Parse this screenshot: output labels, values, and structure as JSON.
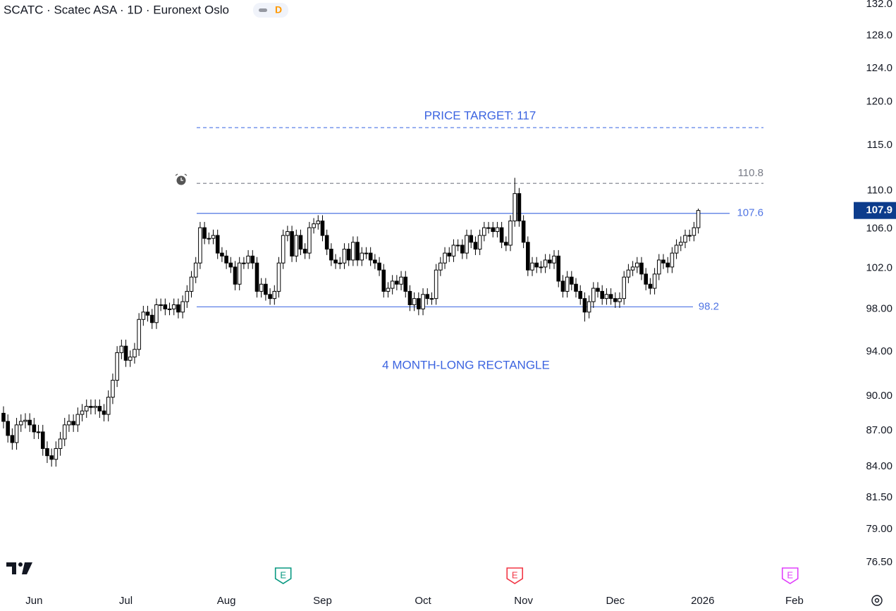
{
  "header": {
    "title": "SCATC · Scatec ASA · 1D · Euronext Oslo",
    "badge": "D"
  },
  "chart_data": {
    "type": "candlestick",
    "log_scale": true,
    "up_color": "#ffffff",
    "down_color": "#000000",
    "open": [
      88.5,
      87.8,
      86.6,
      86.0,
      87.5,
      87.8,
      87.9,
      87.5,
      86.9,
      86.9,
      85.5,
      84.9,
      84.6,
      85.5,
      86.3,
      87.5,
      87.8,
      87.5,
      88.4,
      88.7,
      89.1,
      89.0,
      89.1,
      88.7,
      88.4,
      89.9,
      91.4,
      93.9,
      94.5,
      93.2,
      93.5,
      94.2,
      97.0,
      97.7,
      97.4,
      96.7,
      98.4,
      98.4,
      98.0,
      98.0,
      98.4,
      97.7,
      98.7,
      99.7,
      101.1,
      102.5,
      106.1,
      105.0,
      105.0,
      105.3,
      103.5,
      103.2,
      102.5,
      102.1,
      100.4,
      102.5,
      102.5,
      103.2,
      102.5,
      99.7,
      100.4,
      99.4,
      99.0,
      99.7,
      102.5,
      105.3,
      105.7,
      103.2,
      105.3,
      103.9,
      103.5,
      106.1,
      106.5,
      106.8,
      105.3,
      103.9,
      102.8,
      102.5,
      102.5,
      103.9,
      102.8,
      104.6,
      102.8,
      103.5,
      103.5,
      102.8,
      102.5,
      101.8,
      99.7,
      100.0,
      100.7,
      100.4,
      101.1,
      99.7,
      98.4,
      99.0,
      98.0,
      99.4,
      99.0,
      99.0,
      101.8,
      102.5,
      103.5,
      103.2,
      104.3,
      104.3,
      103.5,
      105.3,
      104.6,
      103.9,
      105.3,
      106.1,
      106.1,
      105.7,
      106.1,
      104.6,
      104.3,
      106.8,
      109.7,
      106.8,
      104.6,
      101.8,
      102.5,
      102.1,
      102.1,
      102.8,
      102.5,
      103.2,
      100.7,
      99.7,
      101.1,
      100.4,
      99.7,
      99.0,
      97.7,
      98.7,
      100.0,
      99.7,
      99.0,
      99.4,
      99.0,
      98.7,
      99.0,
      101.1,
      101.8,
      102.1,
      102.5,
      101.4,
      100.4,
      100.0,
      101.4,
      102.8,
      102.5,
      102.1,
      103.5,
      104.3,
      104.6,
      105.3,
      105.3,
      106.1
    ],
    "high": [
      89.1,
      88.4,
      87.2,
      88.1,
      88.4,
      88.5,
      88.5,
      88.1,
      87.5,
      87.5,
      86.1,
      85.5,
      86.1,
      86.9,
      88.1,
      88.4,
      88.4,
      89.0,
      89.3,
      89.7,
      89.7,
      89.7,
      89.7,
      89.3,
      90.5,
      92.0,
      94.5,
      95.1,
      95.1,
      94.1,
      94.8,
      97.6,
      98.3,
      98.3,
      98.0,
      99.0,
      99.0,
      99.0,
      98.6,
      99.0,
      99.0,
      99.3,
      100.3,
      101.7,
      103.1,
      106.7,
      106.7,
      105.6,
      105.9,
      105.9,
      104.1,
      103.8,
      103.1,
      102.7,
      103.1,
      103.1,
      103.8,
      103.8,
      103.1,
      101.0,
      101.0,
      100.0,
      100.3,
      103.1,
      105.9,
      106.3,
      106.3,
      105.9,
      105.9,
      104.5,
      106.7,
      107.1,
      107.4,
      107.4,
      105.9,
      104.5,
      103.4,
      103.1,
      104.5,
      104.5,
      105.2,
      105.2,
      104.1,
      104.1,
      104.1,
      103.4,
      103.1,
      102.4,
      100.6,
      101.3,
      101.3,
      101.7,
      101.7,
      100.3,
      99.6,
      99.6,
      100.0,
      100.0,
      99.6,
      102.4,
      103.1,
      104.1,
      104.1,
      104.9,
      104.9,
      104.9,
      105.9,
      105.9,
      105.2,
      105.9,
      106.7,
      106.7,
      106.7,
      106.7,
      106.7,
      105.2,
      107.4,
      111.4,
      110.3,
      107.4,
      105.2,
      103.1,
      103.1,
      102.7,
      103.4,
      103.4,
      103.8,
      103.8,
      101.3,
      101.7,
      101.7,
      101.0,
      100.3,
      99.6,
      99.3,
      100.6,
      100.6,
      100.3,
      100.0,
      100.0,
      99.6,
      99.6,
      101.7,
      102.4,
      102.7,
      103.1,
      103.1,
      102.0,
      101.0,
      102.0,
      103.4,
      103.4,
      103.1,
      104.1,
      104.9,
      105.2,
      105.9,
      105.9,
      106.7,
      108.1
    ],
    "low": [
      87.2,
      86.0,
      85.4,
      85.4,
      86.9,
      87.2,
      86.9,
      86.3,
      86.3,
      84.9,
      84.3,
      84.0,
      84.0,
      84.9,
      85.7,
      86.9,
      86.9,
      86.9,
      87.8,
      88.1,
      88.4,
      88.4,
      88.1,
      87.8,
      87.8,
      89.3,
      90.8,
      93.3,
      92.6,
      92.6,
      92.9,
      93.6,
      96.4,
      96.8,
      96.1,
      96.1,
      97.8,
      97.4,
      97.4,
      97.4,
      97.1,
      97.1,
      98.1,
      99.1,
      100.5,
      101.9,
      104.4,
      104.4,
      104.4,
      102.9,
      102.6,
      101.9,
      101.5,
      99.8,
      99.8,
      101.9,
      101.9,
      101.9,
      99.1,
      99.1,
      98.8,
      98.4,
      98.4,
      99.1,
      101.9,
      104.7,
      102.6,
      102.6,
      103.3,
      102.9,
      102.9,
      105.5,
      105.9,
      104.7,
      103.3,
      102.2,
      101.9,
      101.9,
      101.9,
      102.2,
      102.2,
      102.2,
      102.2,
      102.9,
      102.2,
      101.9,
      101.2,
      99.1,
      99.1,
      99.4,
      99.8,
      99.8,
      99.1,
      97.8,
      97.8,
      97.4,
      97.4,
      98.4,
      98.4,
      98.4,
      101.2,
      101.9,
      102.6,
      102.6,
      103.7,
      102.9,
      102.9,
      104.0,
      103.3,
      103.3,
      104.7,
      105.5,
      105.1,
      105.1,
      104.0,
      103.7,
      103.7,
      106.2,
      106.2,
      104.0,
      101.2,
      101.2,
      101.5,
      101.5,
      101.5,
      101.9,
      101.9,
      100.1,
      99.1,
      99.1,
      99.8,
      99.1,
      98.4,
      96.8,
      97.1,
      98.1,
      99.1,
      98.4,
      98.4,
      98.4,
      98.1,
      98.1,
      98.4,
      100.5,
      101.2,
      101.5,
      100.8,
      99.8,
      99.4,
      99.4,
      100.8,
      101.9,
      101.5,
      101.5,
      102.9,
      103.7,
      104.0,
      104.7,
      104.7,
      105.5
    ],
    "close": [
      87.8,
      86.6,
      86.0,
      87.5,
      87.8,
      87.9,
      87.5,
      86.9,
      86.9,
      85.5,
      84.9,
      84.6,
      85.5,
      86.3,
      87.5,
      87.8,
      87.5,
      88.4,
      88.7,
      89.1,
      89.0,
      89.1,
      88.7,
      88.4,
      89.9,
      91.4,
      93.9,
      94.5,
      93.2,
      93.5,
      94.2,
      97.0,
      97.7,
      97.4,
      96.7,
      98.4,
      98.4,
      98.0,
      98.0,
      98.4,
      97.7,
      98.7,
      99.7,
      101.1,
      102.5,
      106.1,
      105.0,
      105.0,
      105.3,
      103.5,
      103.2,
      102.5,
      102.1,
      100.4,
      102.5,
      102.5,
      103.2,
      102.5,
      99.7,
      100.4,
      99.4,
      99.0,
      99.7,
      102.5,
      105.3,
      105.7,
      103.2,
      105.3,
      103.9,
      103.5,
      106.1,
      106.5,
      106.8,
      105.3,
      103.9,
      102.8,
      102.5,
      102.5,
      103.9,
      102.8,
      104.6,
      102.8,
      103.5,
      103.5,
      102.8,
      102.5,
      101.8,
      99.7,
      100.0,
      100.7,
      100.4,
      101.1,
      99.7,
      98.4,
      99.0,
      98.0,
      99.4,
      99.0,
      99.0,
      101.8,
      102.5,
      103.5,
      103.2,
      104.3,
      104.3,
      103.5,
      105.3,
      104.6,
      103.9,
      105.3,
      106.1,
      106.1,
      105.7,
      106.1,
      104.6,
      104.3,
      106.8,
      109.7,
      106.8,
      104.6,
      101.8,
      102.5,
      102.1,
      102.1,
      102.8,
      102.5,
      103.2,
      100.7,
      99.7,
      101.1,
      100.4,
      99.7,
      99.0,
      97.7,
      98.7,
      100.0,
      99.7,
      99.0,
      99.4,
      99.0,
      98.7,
      99.0,
      101.1,
      101.8,
      102.1,
      102.5,
      101.4,
      100.4,
      100.0,
      101.4,
      102.8,
      102.5,
      102.1,
      103.5,
      104.3,
      104.6,
      105.3,
      105.3,
      106.1,
      107.9
    ],
    "xlim": [
      -0.8,
      192.3
    ],
    "xticks": [
      {
        "value": 7,
        "label": "Jun"
      },
      {
        "value": 28,
        "label": "Jul"
      },
      {
        "value": 51,
        "label": "Aug"
      },
      {
        "value": 73,
        "label": "Sep"
      },
      {
        "value": 96,
        "label": "Oct"
      },
      {
        "value": 119,
        "label": "Nov"
      },
      {
        "value": 140,
        "label": "Dec"
      },
      {
        "value": 160,
        "label": "2026"
      },
      {
        "value": 181,
        "label": "Feb"
      }
    ],
    "ylim": [
      74.57,
      132.55
    ],
    "yticks": [
      {
        "value": 132,
        "label": "132.0"
      },
      {
        "value": 128,
        "label": "128.0"
      },
      {
        "value": 124,
        "label": "124.0"
      },
      {
        "value": 120,
        "label": "120.0"
      },
      {
        "value": 115,
        "label": "115.0"
      },
      {
        "value": 110,
        "label": "110.0"
      },
      {
        "value": 106,
        "label": "106.0"
      },
      {
        "value": 102,
        "label": "102.0"
      },
      {
        "value": 98,
        "label": "98.00"
      },
      {
        "value": 94,
        "label": "94.00"
      },
      {
        "value": 90,
        "label": "90.00"
      },
      {
        "value": 87,
        "label": "87.00"
      },
      {
        "value": 84,
        "label": "84.00"
      },
      {
        "value": 81.5,
        "label": "81.50"
      },
      {
        "value": 79,
        "label": "79.00"
      },
      {
        "value": 76.5,
        "label": "76.50"
      }
    ],
    "levels": [
      {
        "value": 117,
        "color": "#5b80e8",
        "style": "dashed"
      },
      {
        "value": 110.8,
        "color": "#787b86",
        "style": "dashed"
      },
      {
        "value": 107.6,
        "color": "#4f74e3",
        "style": "solid"
      },
      {
        "value": 98.2,
        "color": "#4f74e3",
        "style": "solid"
      }
    ],
    "annotations": [
      {
        "text": "PRICE TARGET: 117"
      },
      {
        "text": "4 MONTH-LONG RECTANGLE"
      }
    ],
    "events": [
      {
        "x": 64,
        "label": "E",
        "color": "#089981"
      },
      {
        "x": 117,
        "label": "E",
        "color": "#f23645"
      },
      {
        "x": 180,
        "label": "E",
        "color": "#e040fb"
      }
    ],
    "last_price_color": "#0c3c8c"
  }
}
